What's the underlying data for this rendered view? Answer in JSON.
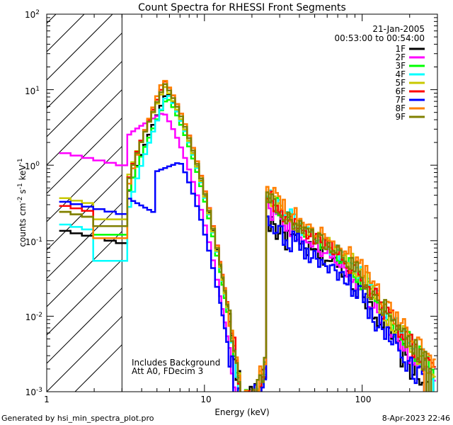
{
  "chart_data": {
    "type": "line",
    "title": "Count Spectra for RHESSI Front Segments",
    "xlabel": "Energy (keV)",
    "ylabel_parts": {
      "base": "counts cm",
      "exp1": "-2",
      "mid": " s",
      "exp2": "-1",
      "mid2": " keV",
      "exp3": "-1"
    },
    "xscale": "log",
    "yscale": "log",
    "xlim": [
      1,
      300
    ],
    "ylim": [
      0.001,
      100
    ],
    "x_tick_labels": [
      {
        "value": 1,
        "label": "1"
      },
      {
        "value": 10,
        "label": "10"
      },
      {
        "value": 100,
        "label": "100"
      }
    ],
    "y_tick_labels": [
      {
        "value": 100,
        "base": "10",
        "exp": "2"
      },
      {
        "value": 10,
        "base": "10",
        "exp": "1"
      },
      {
        "value": 1,
        "base": "10",
        "exp": "0"
      },
      {
        "value": 0.1,
        "base": "10",
        "exp": "-1"
      },
      {
        "value": 0.01,
        "base": "10",
        "exp": "-2"
      },
      {
        "value": 0.001,
        "base": "10",
        "exp": "-3"
      }
    ],
    "hatched_region": [
      1,
      3
    ],
    "date": "21-Jan-2005",
    "time_range": "00:53:00 to 00:54:00",
    "annotations": [
      "Includes Background",
      "Att A0, FDecim 3"
    ],
    "legend_position": "top-right",
    "series": [
      {
        "name": "1F",
        "color": "#000000",
        "peak": 9.5,
        "pe": 5.8,
        "low": 0.14,
        "lowmin": 0.09,
        "hump": 0.03,
        "tail": 0.002,
        "noise": 0.6
      },
      {
        "name": "2F",
        "color": "#ff00ff",
        "peak": 5.0,
        "pe": 5.5,
        "low": 1.5,
        "lowmin": 1.4,
        "hump": 0.025,
        "tail": 0.003,
        "noise": 0.3
      },
      {
        "name": "3F",
        "color": "#00ff00",
        "peak": 8.0,
        "pe": 5.8,
        "low": 0.25,
        "lowmin": 0.1,
        "hump": 0.028,
        "tail": 0.004,
        "noise": 0.3
      },
      {
        "name": "4F",
        "color": "#00ffff",
        "peak": 9.0,
        "pe": 5.8,
        "low": 0.17,
        "lowmin": 0.045,
        "hump": 0.03,
        "tail": 0.004,
        "noise": 0.3
      },
      {
        "name": "5F",
        "color": "#c8c800",
        "peak": 11.0,
        "pe": 5.6,
        "low": 0.38,
        "lowmin": 0.16,
        "hump": 0.035,
        "tail": 0.004,
        "noise": 0.3
      },
      {
        "name": "6F",
        "color": "#ff0000",
        "peak": 13.0,
        "pe": 5.6,
        "low": 0.3,
        "lowmin": 0.13,
        "hump": 0.03,
        "tail": 0.004,
        "noise": 0.3
      },
      {
        "name": "7F",
        "color": "#0000ff",
        "peak": 1.1,
        "pe": 7.0,
        "low": 0.34,
        "lowmin": 0.35,
        "hump": 0.02,
        "tail": 0.002,
        "noise": 0.6
      },
      {
        "name": "8F",
        "color": "#ff8000",
        "peak": 14.0,
        "pe": 5.5,
        "low": 0.25,
        "lowmin": 0.09,
        "hump": 0.038,
        "tail": 0.005,
        "noise": 0.3
      },
      {
        "name": "9F",
        "color": "#808000",
        "peak": 12.0,
        "pe": 5.6,
        "low": 0.25,
        "lowmin": 0.13,
        "hump": 0.033,
        "tail": 0.004,
        "noise": 0.3
      }
    ]
  },
  "footer": {
    "left": "Generated by hsi_min_spectra_plot.pro",
    "right": "8-Apr-2023 22:46"
  }
}
